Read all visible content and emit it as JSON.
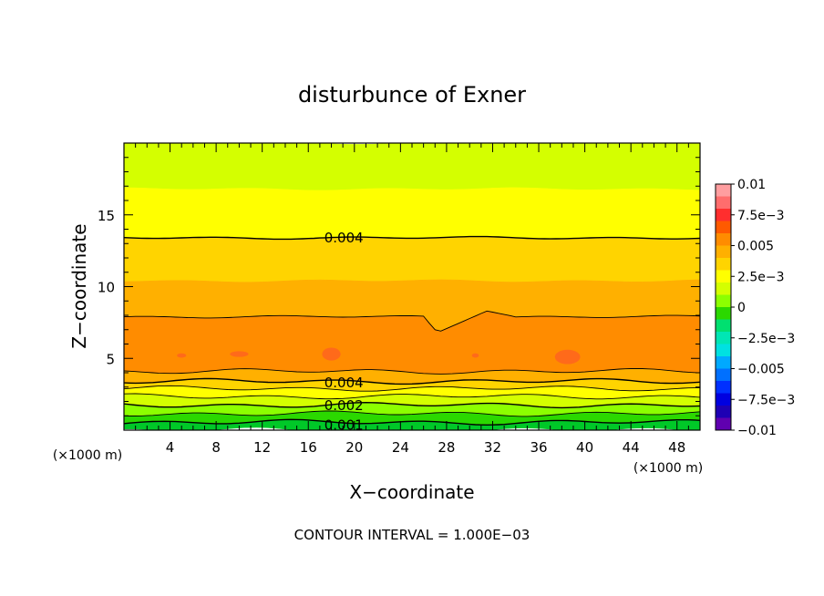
{
  "chart_data": {
    "type": "contour",
    "title": "disturbunce of Exner",
    "xlabel": "X−coordinate",
    "ylabel": "Z−coordinate",
    "x_unit": "(×1000 m)",
    "y_unit": "(×1000 m)",
    "xlim": [
      0,
      50
    ],
    "ylim": [
      0,
      20
    ],
    "x_ticks": [
      4,
      8,
      12,
      16,
      20,
      24,
      28,
      32,
      36,
      40,
      44,
      48
    ],
    "y_ticks": [
      5,
      10,
      15
    ],
    "footer": "CONTOUR INTERVAL = 1.000E−03",
    "contour_interval": 0.001,
    "contour_labels": [
      {
        "text": "0.004",
        "x": 17.5,
        "z": 13.4
      },
      {
        "text": "0.004",
        "x": 17.5,
        "z": 3.3
      },
      {
        "text": "0.002",
        "x": 17.5,
        "z": 1.7
      },
      {
        "text": "0.001",
        "x": 17.5,
        "z": 0.35
      }
    ],
    "colorbar": {
      "ticks": [
        "0.01",
        "7.5e−3",
        "0.005",
        "2.5e−3",
        "0",
        "−2.5e−3",
        "−0.005",
        "−7.5e−3",
        "−0.01"
      ],
      "levels": [
        {
          "value": 0.0095,
          "color": "#ff9ea0"
        },
        {
          "value": 0.0085,
          "color": "#ff6d6d"
        },
        {
          "value": 0.0075,
          "color": "#ff2e2e"
        },
        {
          "value": 0.0065,
          "color": "#ff5a00"
        },
        {
          "value": 0.0055,
          "color": "#ff8c00"
        },
        {
          "value": 0.0045,
          "color": "#ffb000"
        },
        {
          "value": 0.0035,
          "color": "#ffd400"
        },
        {
          "value": 0.0025,
          "color": "#ffff00"
        },
        {
          "value": 0.0015,
          "color": "#d4ff00"
        },
        {
          "value": 0.0005,
          "color": "#8cff00"
        },
        {
          "value": -0.0005,
          "color": "#2bd800"
        },
        {
          "value": -0.0015,
          "color": "#00e070"
        },
        {
          "value": -0.0025,
          "color": "#00e6b4"
        },
        {
          "value": -0.0035,
          "color": "#00e1e1"
        },
        {
          "value": -0.0045,
          "color": "#00a9ff"
        },
        {
          "value": -0.0055,
          "color": "#0070ff"
        },
        {
          "value": -0.0065,
          "color": "#0030ff"
        },
        {
          "value": -0.0075,
          "color": "#0000e0"
        },
        {
          "value": -0.0085,
          "color": "#1e00b4"
        },
        {
          "value": -0.0095,
          "color": "#6000b0"
        }
      ]
    },
    "field_bands": [
      {
        "z_top": 20.0,
        "z_bottom": 16.8,
        "color": "#d4ff00"
      },
      {
        "z_top": 16.8,
        "z_bottom": 13.4,
        "color": "#ffff00"
      },
      {
        "z_top": 13.4,
        "z_bottom": 10.4,
        "color": "#ffd400"
      },
      {
        "z_top": 10.4,
        "z_bottom": 7.9,
        "color": "#ffb000"
      },
      {
        "z_top": 7.9,
        "z_bottom": 4.1,
        "color": "#ff8c00"
      },
      {
        "z_top": 4.1,
        "z_bottom": 3.4,
        "color": "#ffb000"
      },
      {
        "z_top": 3.4,
        "z_bottom": 2.9,
        "color": "#ffd400"
      },
      {
        "z_top": 2.9,
        "z_bottom": 2.35,
        "color": "#ffff00"
      },
      {
        "z_top": 2.35,
        "z_bottom": 1.75,
        "color": "#d4ff00"
      },
      {
        "z_top": 1.75,
        "z_bottom": 1.15,
        "color": "#8cff00"
      },
      {
        "z_top": 1.15,
        "z_bottom": 0.55,
        "color": "#2bd800"
      },
      {
        "z_top": 0.55,
        "z_bottom": 0.0,
        "color": "#00c828"
      }
    ],
    "contour_levels_z": [
      13.4,
      7.9,
      4.1,
      3.4,
      2.9,
      2.35,
      1.75,
      1.15,
      0.55
    ],
    "spots": [
      {
        "x": 5.0,
        "z": 5.2,
        "rx": 0.4,
        "rz": 0.15,
        "color": "#ff6a1a"
      },
      {
        "x": 10.0,
        "z": 5.3,
        "rx": 0.8,
        "rz": 0.2,
        "color": "#ff6a1a"
      },
      {
        "x": 18.0,
        "z": 5.3,
        "rx": 0.8,
        "rz": 0.45,
        "color": "#ff6a1a"
      },
      {
        "x": 30.5,
        "z": 5.2,
        "rx": 0.3,
        "rz": 0.15,
        "color": "#ff6a1a"
      },
      {
        "x": 38.5,
        "z": 5.1,
        "rx": 1.1,
        "rz": 0.5,
        "color": "#ff6a1a"
      }
    ]
  }
}
